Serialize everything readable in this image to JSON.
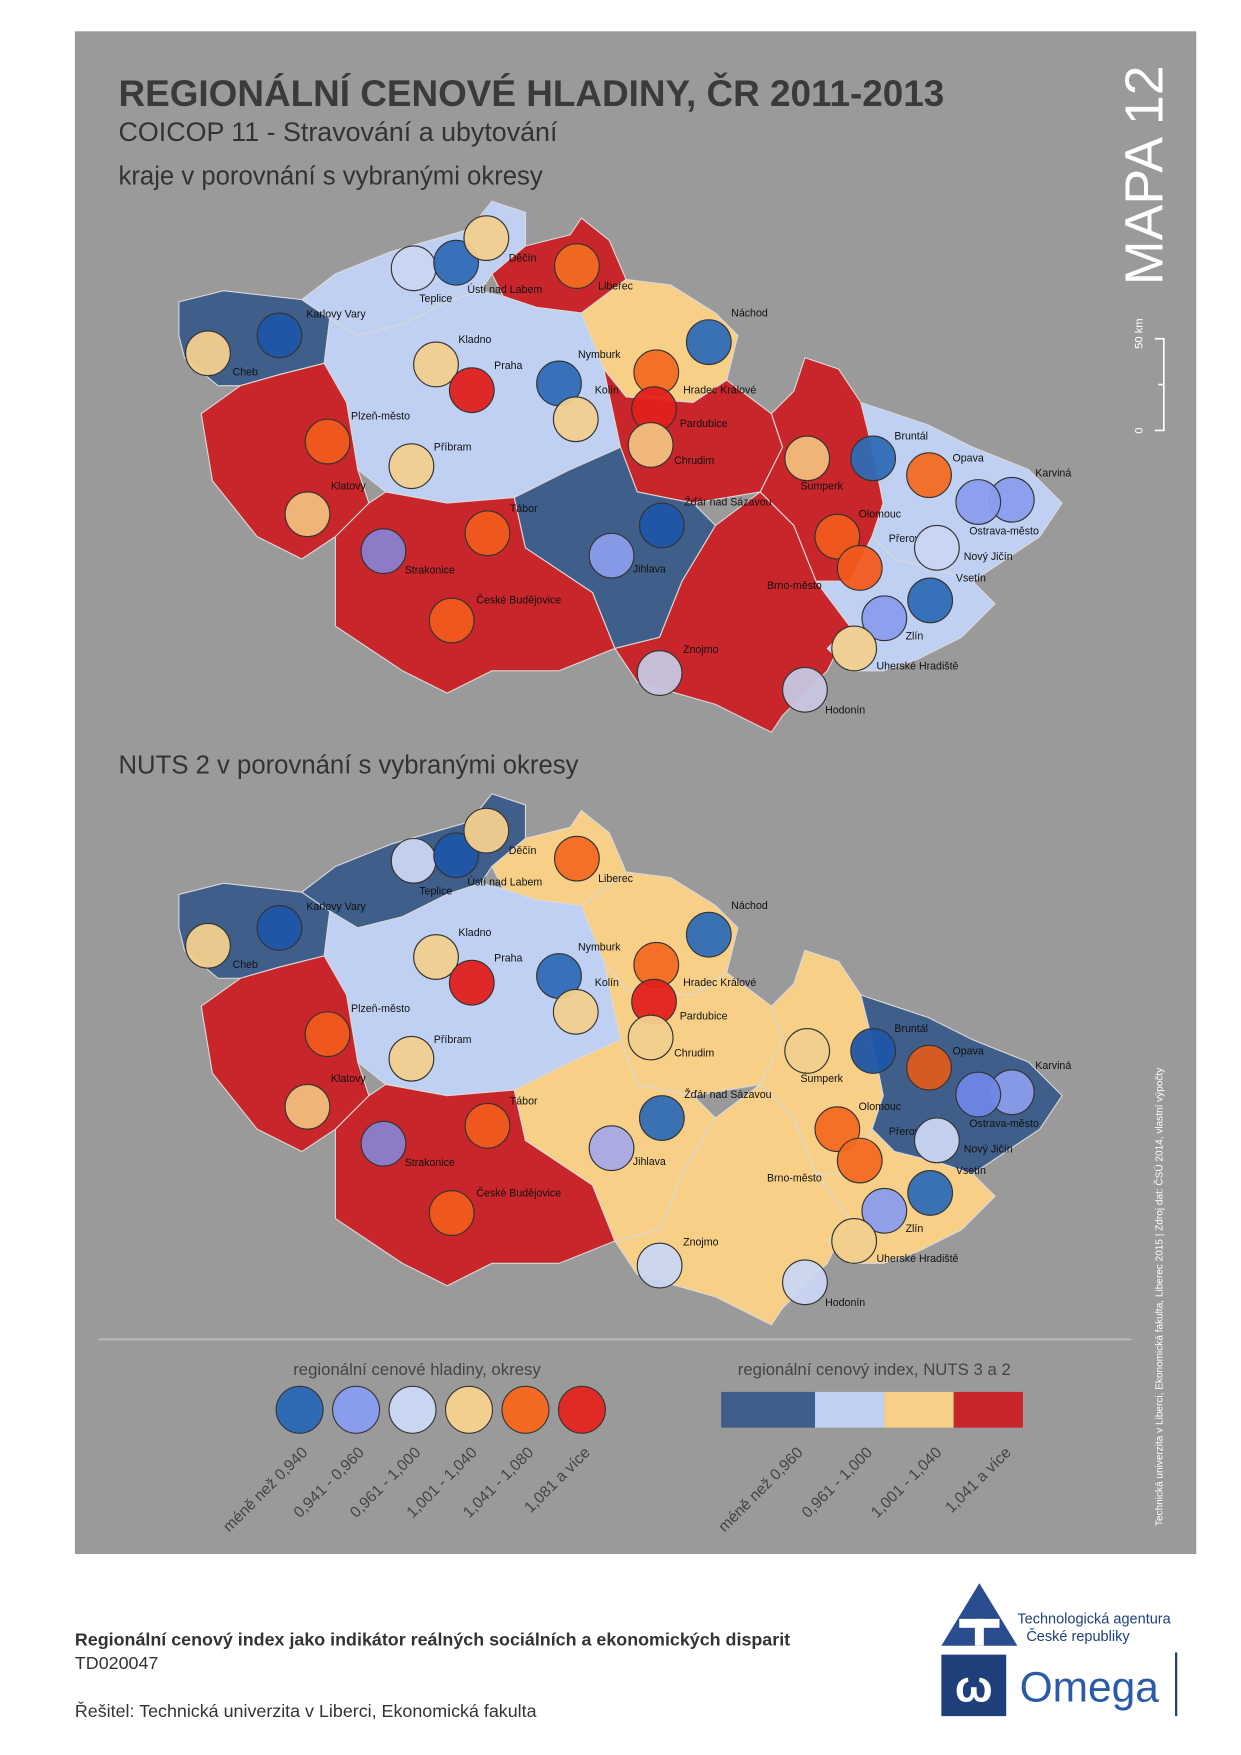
{
  "title": "REGIONÁLNÍ CENOVÉ HLADINY, ČR 2011-2013",
  "subtitle": "COICOP 11 - Stravování a ubytování",
  "map_number": "MAPA 12",
  "scale": {
    "label": "50 km",
    "zero": "0"
  },
  "maps": [
    {
      "heading": "kraje v porovnání s vybranými okresy",
      "cities": [
        {
          "name": "Cheb",
          "color": "#f2cf8e"
        },
        {
          "name": "Karlovy Vary",
          "color": "#1f55a8"
        },
        {
          "name": "Teplice",
          "color": "#c9d6f2"
        },
        {
          "name": "Ústí nad Labem",
          "color": "#2f6bb5"
        },
        {
          "name": "Děčín",
          "color": "#f2cf8e"
        },
        {
          "name": "Liberec",
          "color": "#f26a21"
        },
        {
          "name": "Náchod",
          "color": "#2f6bb5"
        },
        {
          "name": "Kladno",
          "color": "#f2cf8e"
        },
        {
          "name": "Praha",
          "color": "#e0201c"
        },
        {
          "name": "Nymburk",
          "color": "#2f6bb5"
        },
        {
          "name": "Kolín",
          "color": "#f2cf8e"
        },
        {
          "name": "Hradec Králové",
          "color": "#f26a21"
        },
        {
          "name": "Pardubice",
          "color": "#e0201c"
        },
        {
          "name": "Chrudim",
          "color": "#f2c080"
        },
        {
          "name": "Plzeň-město",
          "color": "#f25a1c"
        },
        {
          "name": "Příbram",
          "color": "#f2cf8e"
        },
        {
          "name": "Klatovy",
          "color": "#f2bd7a"
        },
        {
          "name": "Tábor",
          "color": "#f25a1c"
        },
        {
          "name": "Žďár nad Sázavou",
          "color": "#1f55a8"
        },
        {
          "name": "Šumperk",
          "color": "#f2bd7a"
        },
        {
          "name": "Bruntál",
          "color": "#2f6bb5"
        },
        {
          "name": "Opava",
          "color": "#f26a21"
        },
        {
          "name": "Karviná",
          "color": "#8a9cec"
        },
        {
          "name": "Ostrava-město",
          "color": "#8a9cec"
        },
        {
          "name": "Olomouc",
          "color": "#f25a1c"
        },
        {
          "name": "Přerov",
          "color": "#f25a1c"
        },
        {
          "name": "Nový Jičín",
          "color": "#c9d6f2"
        },
        {
          "name": "Vsetín",
          "color": "#2f6bb5"
        },
        {
          "name": "Zlín",
          "color": "#8a9cec"
        },
        {
          "name": "Uherské Hradiště",
          "color": "#f2cf8e"
        },
        {
          "name": "Strakonice",
          "color": "#8b7fd1"
        },
        {
          "name": "Jihlava",
          "color": "#8a9cec"
        },
        {
          "name": "České Budějovice",
          "color": "#f25a1c"
        },
        {
          "name": "Brno-město",
          "color": null
        },
        {
          "name": "Znojmo",
          "color": "#c8c5e0"
        },
        {
          "name": "Hodonín",
          "color": "#c8c5e0"
        }
      ]
    },
    {
      "heading": "NUTS 2 v porovnání s vybranými okresy",
      "cities": [
        {
          "name": "Cheb",
          "color": "#f2cf8e"
        },
        {
          "name": "Karlovy Vary",
          "color": "#1f55a8"
        },
        {
          "name": "Teplice",
          "color": "#c9d6f2"
        },
        {
          "name": "Ústí nad Labem",
          "color": "#1f55a8"
        },
        {
          "name": "Děčín",
          "color": "#f2cf8e"
        },
        {
          "name": "Liberec",
          "color": "#f26a21"
        },
        {
          "name": "Náchod",
          "color": "#2f6bb5"
        },
        {
          "name": "Kladno",
          "color": "#f2cf8e"
        },
        {
          "name": "Praha",
          "color": "#e0201c"
        },
        {
          "name": "Nymburk",
          "color": "#2f6bb5"
        },
        {
          "name": "Kolín",
          "color": "#f2cf8e"
        },
        {
          "name": "Hradec Králové",
          "color": "#f26a21"
        },
        {
          "name": "Pardubice",
          "color": "#e0201c"
        },
        {
          "name": "Chrudim",
          "color": "#f2cf8e"
        },
        {
          "name": "Plzeň-město",
          "color": "#f25a1c"
        },
        {
          "name": "Příbram",
          "color": "#f2cf8e"
        },
        {
          "name": "Klatovy",
          "color": "#f2bd7a"
        },
        {
          "name": "Tábor",
          "color": "#f25a1c"
        },
        {
          "name": "Žďár nad Sázavou",
          "color": "#2f6bb5"
        },
        {
          "name": "Šumperk",
          "color": "#f2cf8e"
        },
        {
          "name": "Bruntál",
          "color": "#1f55a8"
        },
        {
          "name": "Opava",
          "color": "#dd5a1f"
        },
        {
          "name": "Karviná",
          "color": "#8a9cec"
        },
        {
          "name": "Ostrava-město",
          "color": "#6f86e6"
        },
        {
          "name": "Olomouc",
          "color": "#f26a21"
        },
        {
          "name": "Přerov",
          "color": "#f26a21"
        },
        {
          "name": "Nový Jičín",
          "color": "#c9d6f2"
        },
        {
          "name": "Vsetín",
          "color": "#2f6bb5"
        },
        {
          "name": "Zlín",
          "color": "#8a9cec"
        },
        {
          "name": "Uherské Hradiště",
          "color": "#f2cf8e"
        },
        {
          "name": "Strakonice",
          "color": "#8b7fd1"
        },
        {
          "name": "Jihlava",
          "color": "#a6a8e6"
        },
        {
          "name": "České Budějovice",
          "color": "#f25a1c"
        },
        {
          "name": "Brno-město",
          "color": null
        },
        {
          "name": "Znojmo",
          "color": "#c9d6f2"
        },
        {
          "name": "Hodonín",
          "color": "#c9d6f2"
        }
      ]
    }
  ],
  "legend_districts": {
    "title": "regionální cenové hladiny, okresy",
    "classes": [
      {
        "label": "méně než 0,940",
        "color": "#2f6bb5"
      },
      {
        "label": "0,941 - 0,960",
        "color": "#8a9cec"
      },
      {
        "label": "0,961 - 1,000",
        "color": "#c9d6f2"
      },
      {
        "label": "1,001 - 1,040",
        "color": "#f2cf8e"
      },
      {
        "label": "1,041 - 1,080",
        "color": "#f26a21"
      },
      {
        "label": "1,081 a více",
        "color": "#e02a26"
      }
    ]
  },
  "legend_regions": {
    "title": "regionální cenový index, NUTS 3 a 2",
    "classes": [
      {
        "label": "méně než 0,960",
        "color": "#3f5f8a"
      },
      {
        "label": "0,961 - 1,000",
        "color": "#bfd0f2"
      },
      {
        "label": "1,001 - 1,040",
        "color": "#f7cf87"
      },
      {
        "label": "1,041 a více",
        "color": "#c8262b"
      }
    ]
  },
  "source": "Technická univerzita v Liberci, Ekonomická fakulta, Liberec 2015 | Zdroj dat: ČSÚ 2014, vlastní výpočty",
  "footer": {
    "project": "Regionální cenový index jako indikátor reálných sociálních a ekonomických disparit",
    "code": "TD020047",
    "solver": "Řešitel: Technická univerzita v Liberci, Ekonomická fakulta"
  },
  "logos": {
    "agency_line1": "Technologická agentura",
    "agency_line2": "České republiky",
    "omega": "Omega"
  }
}
